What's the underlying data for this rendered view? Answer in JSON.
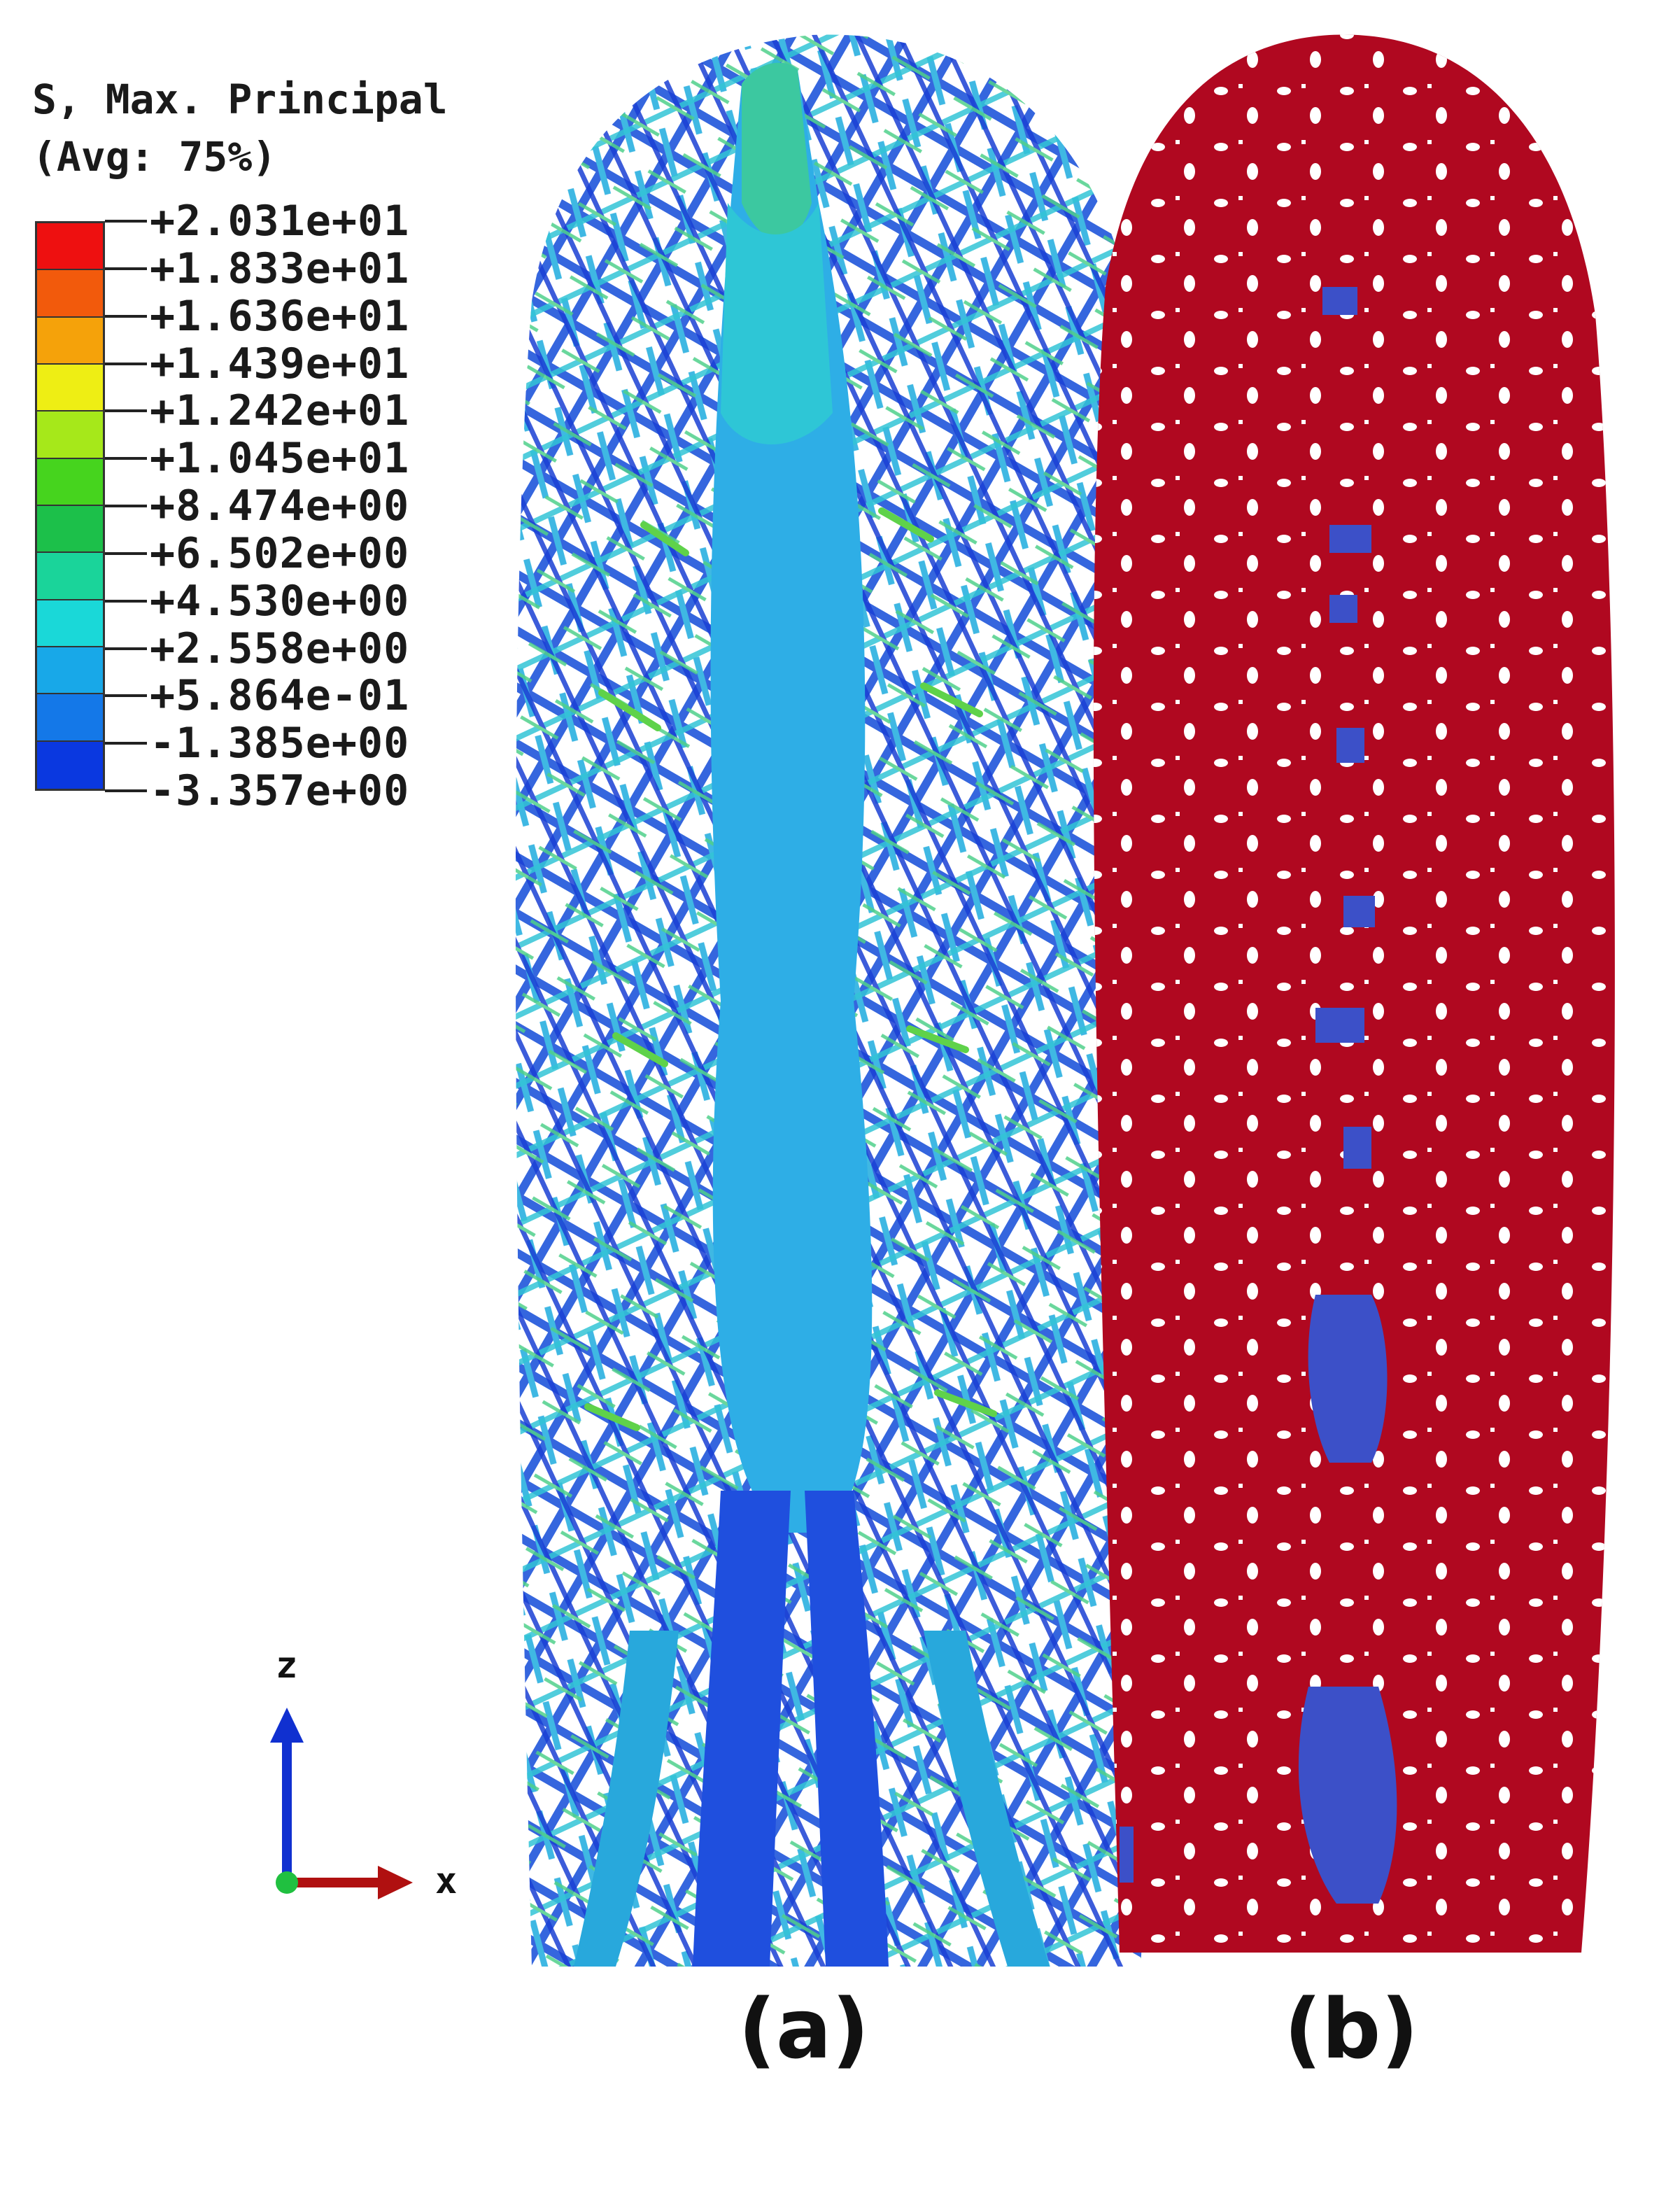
{
  "legend": {
    "title_line1": "S, Max. Principal",
    "title_line2": "(Avg: 75%)",
    "values": [
      "+2.031e+01",
      "+1.833e+01",
      "+1.636e+01",
      "+1.439e+01",
      "+1.242e+01",
      "+1.045e+01",
      "+8.474e+00",
      "+6.502e+00",
      "+4.530e+00",
      "+2.558e+00",
      "+5.864e-01",
      "-1.385e+00",
      "-3.357e+00"
    ],
    "colors": [
      "#ee1010",
      "#f25a0c",
      "#f5a20a",
      "#eeee14",
      "#a6e81a",
      "#46d41e",
      "#1cc04a",
      "#1ad49a",
      "#1ad8d8",
      "#18a8e8",
      "#1478e8",
      "#0a38e0"
    ]
  },
  "axes": {
    "z": "z",
    "x": "x"
  },
  "panels": {
    "a": "(a)",
    "b": "(b)"
  },
  "colors": {
    "panel_b_fill": "#b00820",
    "panel_b_patch": "#3c50c8",
    "panel_a_core": "#26a8e6",
    "panel_a_dark": "#1f50d8",
    "panel_a_light": "#30c8d8"
  }
}
